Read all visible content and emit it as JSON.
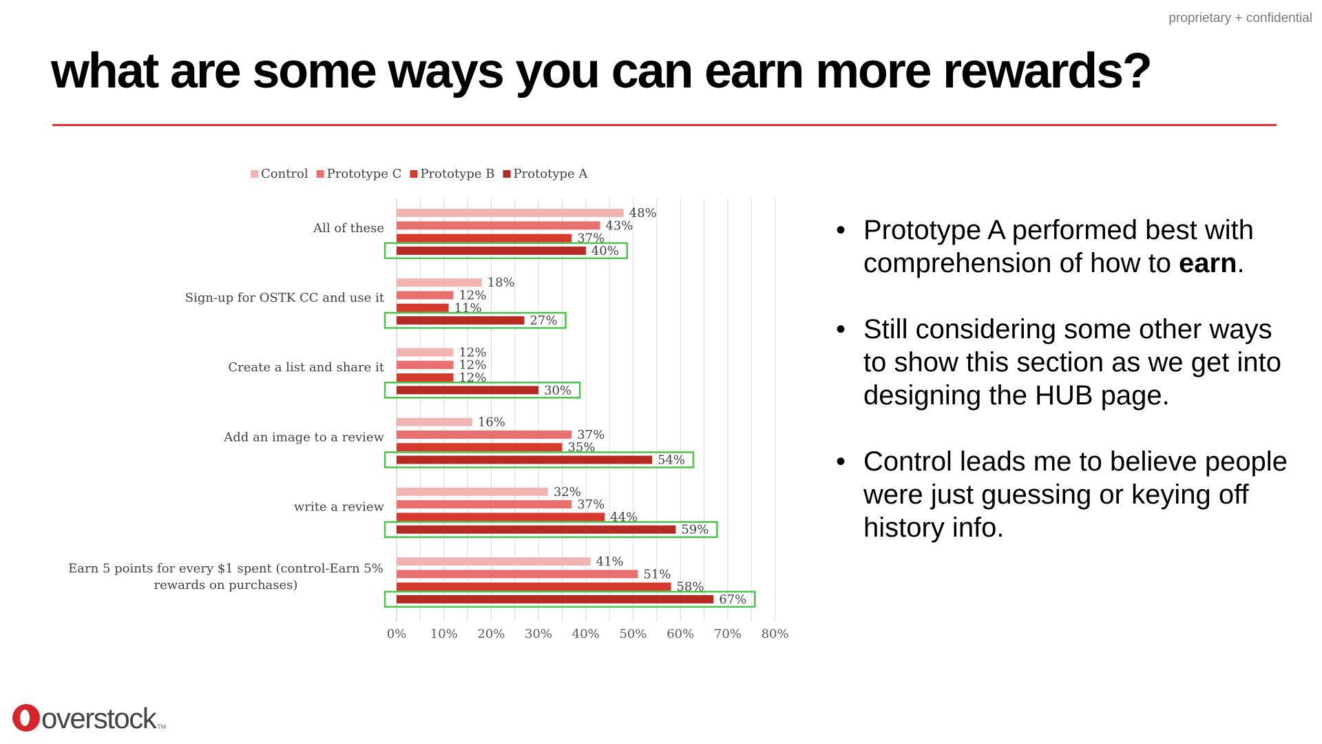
{
  "header": {
    "confidential": "proprietary + confidential",
    "title": "what are some ways you can earn more rewards?"
  },
  "bullets": [
    {
      "text_before": "Prototype A performed best with comprehension of how to ",
      "bold": "earn",
      "text_after": "."
    },
    {
      "text_before": "Still considering some other ways to show this section as we get into designing the HUB page.",
      "bold": "",
      "text_after": ""
    },
    {
      "text_before": "Control leads me to believe people were just guessing or keying off history info.",
      "bold": "",
      "text_after": ""
    }
  ],
  "logo": {
    "word": "overstock",
    "tm": "TM"
  },
  "chart_data": {
    "type": "bar",
    "orientation": "horizontal",
    "categories": [
      [
        "All of these"
      ],
      [
        "Sign-up for OSTK CC and use it"
      ],
      [
        "Create a list and share it"
      ],
      [
        "Add an image to a review"
      ],
      [
        "write a review"
      ],
      [
        "Earn 5 points for every $1 spent (control-Earn 5%",
        "rewards on purchases)"
      ]
    ],
    "series": [
      {
        "name": "Control",
        "color": "#f1b4b2",
        "values": [
          48,
          18,
          12,
          16,
          32,
          41
        ]
      },
      {
        "name": "Prototype C",
        "color": "#e8716f",
        "values": [
          43,
          12,
          12,
          37,
          37,
          51
        ]
      },
      {
        "name": "Prototype B",
        "color": "#d53a2c",
        "values": [
          37,
          11,
          12,
          35,
          44,
          58
        ]
      },
      {
        "name": "Prototype A",
        "color": "#b52a22",
        "values": [
          40,
          27,
          30,
          54,
          59,
          67
        ]
      }
    ],
    "value_suffix": "%",
    "xlim": [
      0,
      80
    ],
    "xticks": [
      0,
      10,
      20,
      30,
      40,
      50,
      60,
      70,
      80
    ],
    "tick_suffix": "%",
    "grid": "vertical",
    "legend_position": "top",
    "highlighted_series": "Prototype A",
    "highlight_color": "#4cc24c"
  }
}
